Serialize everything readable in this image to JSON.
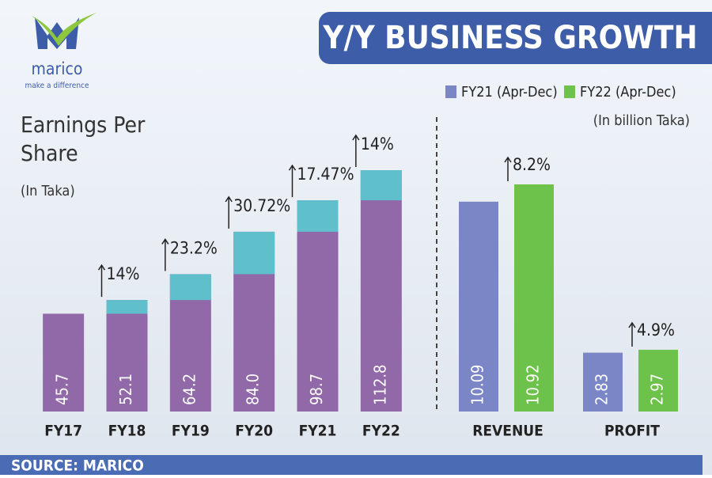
{
  "header": {
    "logo": "marico",
    "tagline": "make a difference",
    "title": "Y/Y BUSINESS GROWTH"
  },
  "chart_data": [
    {
      "type": "bar",
      "title": "Earnings Per Share",
      "subtitle": "(In Taka)",
      "categories": [
        "FY17",
        "FY18",
        "FY19",
        "FY20",
        "FY21",
        "FY22"
      ],
      "values": [
        45.7,
        52.1,
        64.2,
        84.0,
        98.7,
        112.8
      ],
      "value_labels": [
        "45.7",
        "52.1",
        "64.2",
        "84.0",
        "98.7",
        "112.8"
      ],
      "color": "#9168a8",
      "increase_color": "#5fc0cc",
      "growth": {
        "values": [
          null,
          14,
          23.2,
          30.72,
          17.47,
          14
        ],
        "value_labels": [
          null,
          "14%",
          "23.2%",
          "30.72%",
          "17.47%",
          "14%"
        ]
      }
    },
    {
      "type": "grouped_bar",
      "subtitle": "(In billion Taka)",
      "legend": "top-right",
      "categories": [
        "REVENUE",
        "PROFIT"
      ],
      "series": [
        {
          "name": "FY21 (Apr-Dec)",
          "color": "#7b86c6",
          "values": [
            10.09,
            2.83
          ]
        },
        {
          "name": "FY22 (Apr-Dec)",
          "color": "#6cc24a",
          "values": [
            10.92,
            2.97
          ]
        }
      ],
      "growth": {
        "values": [
          8.2,
          4.9
        ],
        "value_labels": [
          "8.2%",
          "4.9%"
        ]
      }
    }
  ],
  "footer": {
    "source": "SOURCE: MARICO"
  }
}
